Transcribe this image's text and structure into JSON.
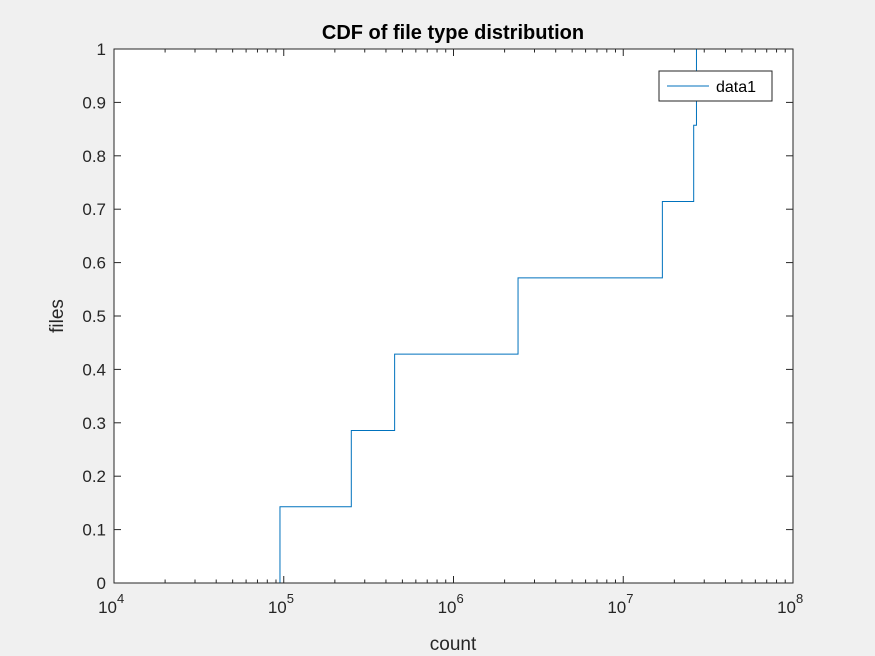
{
  "chart_data": {
    "type": "line",
    "title": "CDF of file type distribution",
    "xlabel": "count",
    "ylabel": "files",
    "xscale": "log",
    "xlim": [
      10000,
      100000000
    ],
    "ylim": [
      0,
      1
    ],
    "x_ticks": [
      {
        "value": 10000,
        "base": "10",
        "exp": "4"
      },
      {
        "value": 100000,
        "base": "10",
        "exp": "5"
      },
      {
        "value": 1000000,
        "base": "10",
        "exp": "6"
      },
      {
        "value": 10000000,
        "base": "10",
        "exp": "7"
      },
      {
        "value": 100000000,
        "base": "10",
        "exp": "8"
      }
    ],
    "y_ticks": [
      "0",
      "0.1",
      "0.2",
      "0.3",
      "0.4",
      "0.5",
      "0.6",
      "0.7",
      "0.8",
      "0.9",
      "1"
    ],
    "grid": false,
    "legend": {
      "position": "top-right",
      "entries": [
        "data1"
      ]
    },
    "series": [
      {
        "name": "data1",
        "color": "#0072bd",
        "style": "stairs",
        "x": [
          95000,
          95000,
          250000,
          250000,
          450000,
          450000,
          2400000,
          2400000,
          17000000,
          17000000,
          26000000,
          26000000,
          27000000,
          27000000
        ],
        "y": [
          0,
          0.1429,
          0.1429,
          0.2857,
          0.2857,
          0.4286,
          0.4286,
          0.5714,
          0.5714,
          0.7143,
          0.7143,
          0.8571,
          0.8571,
          1.0
        ]
      }
    ]
  }
}
